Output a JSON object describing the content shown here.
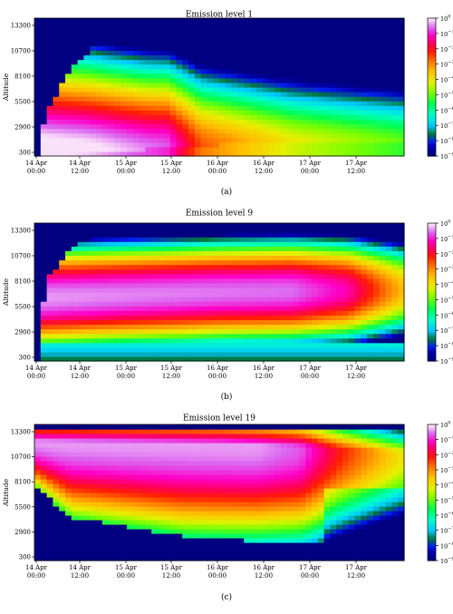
{
  "chart_data": [
    {
      "type": "heatmap",
      "title": "Emission level 1",
      "caption": "(a)",
      "ylabel": "Altitude",
      "yticks": [
        "300",
        "2900",
        "5500",
        "8100",
        "10700",
        "13300"
      ],
      "xticks": [
        "14 Apr\n00:00",
        "14 Apr\n12:00",
        "15 Apr\n00:00",
        "15 Apr\n12:00",
        "16 Apr\n00:00",
        "16 Apr\n12:00",
        "17 Apr\n00:00",
        "17 Apr\n12:00"
      ],
      "colorbar": {
        "scale": "log",
        "min": "1e-9",
        "max": "1e0",
        "ticks": [
          "10^0",
          "10^-1",
          "10^-2",
          "10^-3",
          "10^-4",
          "10^-5",
          "10^-6",
          "10^-7",
          "10^-8",
          "10^-9"
        ]
      },
      "grid": false,
      "profile": {
        "env_x": [
          [
            0,
            0.02
          ],
          [
            0.04,
            0.35
          ],
          [
            0.1,
            0.65
          ],
          [
            0.2,
            0.88
          ],
          [
            0.4,
            0.93
          ],
          [
            1,
            0.92
          ]
        ],
        "peak_z": [
          [
            0,
            0.03
          ],
          [
            0.3,
            0.05
          ],
          [
            0.4,
            0.08
          ],
          [
            1,
            0.1
          ]
        ],
        "peak_v": [
          [
            0,
            0.5
          ],
          [
            0.15,
            0.2
          ],
          [
            0.36,
            -0.6
          ],
          [
            0.45,
            -2.5
          ],
          [
            0.7,
            -4.0
          ],
          [
            1,
            -5.0
          ]
        ],
        "decay": [
          [
            0,
            2.5
          ],
          [
            0.4,
            3.0
          ],
          [
            1,
            3.5
          ]
        ]
      }
    },
    {
      "type": "heatmap",
      "title": "Emission level 9",
      "caption": "(b)",
      "ylabel": "Altitude",
      "yticks": [
        "300",
        "2900",
        "5500",
        "8100",
        "10700",
        "13300"
      ],
      "xticks": [
        "14 Apr\n00:00",
        "14 Apr\n12:00",
        "15 Apr\n00:00",
        "15 Apr\n12:00",
        "16 Apr\n00:00",
        "16 Apr\n12:00",
        "17 Apr\n00:00",
        "17 Apr\n12:00"
      ],
      "colorbar": {
        "scale": "log",
        "min": "1e-9",
        "max": "1e0",
        "ticks": [
          "10^0",
          "10^-1",
          "10^-2",
          "10^-3",
          "10^-4",
          "10^-5",
          "10^-6",
          "10^-7",
          "10^-8",
          "10^-9"
        ]
      },
      "grid": false,
      "profile": {
        "env_x": [
          [
            0,
            0.08
          ],
          [
            0.04,
            0.62
          ],
          [
            0.12,
            0.88
          ],
          [
            1,
            0.96
          ]
        ],
        "peak_z": [
          [
            0,
            0.46
          ],
          [
            0.5,
            0.5
          ],
          [
            1,
            0.52
          ]
        ],
        "peak_v": [
          [
            0,
            -0.3
          ],
          [
            0.25,
            -0.4
          ],
          [
            0.7,
            -0.5
          ],
          [
            0.85,
            -1.2
          ],
          [
            1,
            -3.5
          ]
        ],
        "decay": [
          [
            0,
            5.5
          ],
          [
            1,
            5.5
          ]
        ]
      }
    },
    {
      "type": "heatmap",
      "title": "Emission level 19",
      "caption": "(c)",
      "ylabel": "Altitude",
      "yticks": [
        "300",
        "2900",
        "5500",
        "8100",
        "10700",
        "13300"
      ],
      "xticks": [
        "14 Apr\n00:00",
        "14 Apr\n12:00",
        "15 Apr\n00:00",
        "15 Apr\n12:00",
        "16 Apr\n00:00",
        "16 Apr\n12:00",
        "17 Apr\n00:00",
        "17 Apr\n12:00"
      ],
      "colorbar": {
        "scale": "log",
        "min": "1e-9",
        "max": "1e0",
        "ticks": [
          "10^0",
          "10^-1",
          "10^-2",
          "10^-3",
          "10^-4",
          "10^-5",
          "10^-6",
          "10^-7",
          "10^-8",
          "10^-9"
        ]
      },
      "grid": false,
      "profile": {
        "env_x": [
          [
            0,
            0.55
          ],
          [
            0.1,
            0.32
          ],
          [
            0.4,
            0.18
          ],
          [
            0.75,
            0.12
          ],
          [
            1,
            0.18
          ]
        ],
        "peak_z": [
          [
            0,
            0.88
          ],
          [
            0.5,
            0.86
          ],
          [
            0.75,
            0.84
          ],
          [
            1,
            0.8
          ]
        ],
        "peak_v": [
          [
            0,
            -0.3
          ],
          [
            0.6,
            -0.3
          ],
          [
            0.72,
            -0.6
          ],
          [
            0.82,
            -2.0
          ],
          [
            1,
            -4.0
          ]
        ],
        "decay": [
          [
            0,
            2.2
          ],
          [
            0.5,
            2.6
          ],
          [
            1,
            3.2
          ]
        ]
      }
    }
  ]
}
